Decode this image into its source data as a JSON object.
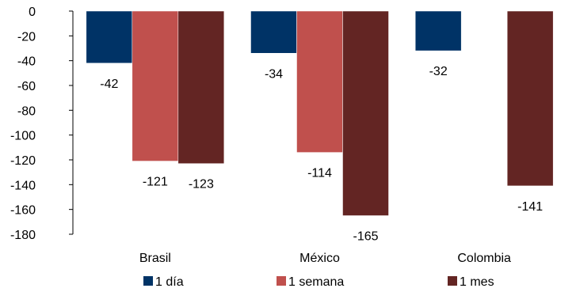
{
  "chart_data": {
    "type": "bar",
    "categories": [
      "Brasil",
      "México",
      "Colombia"
    ],
    "series": [
      {
        "name": "1 día",
        "color": "#003366",
        "values": [
          -42,
          -34,
          -32
        ]
      },
      {
        "name": "1 semana",
        "color": "#C0504D",
        "values": [
          -121,
          -114,
          null
        ]
      },
      {
        "name": "1 mes",
        "color": "#632523",
        "values": [
          -123,
          -165,
          -141
        ]
      }
    ],
    "ylim": [
      -180,
      0
    ],
    "yticks": [
      0,
      -20,
      -40,
      -60,
      -80,
      -100,
      -120,
      -140,
      -160,
      -180
    ],
    "grid": false,
    "legend_position": "bottom",
    "title": "",
    "xlabel": "",
    "ylabel": ""
  }
}
